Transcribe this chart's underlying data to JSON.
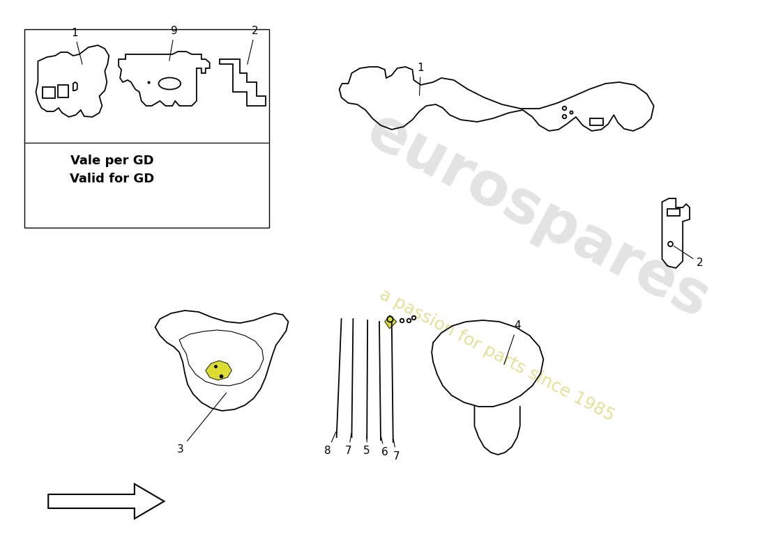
{
  "bg_color": "#ffffff",
  "line_color": "#000000",
  "lw": 1.3,
  "highlight_color": "#d4d400",
  "watermark_main": "eurospares",
  "watermark_sub": "a passion for parts since 1985",
  "inset_label1": "Vale per GD",
  "inset_label2": "Valid for GD",
  "fig_w": 11.0,
  "fig_h": 8.0,
  "dpi": 100
}
